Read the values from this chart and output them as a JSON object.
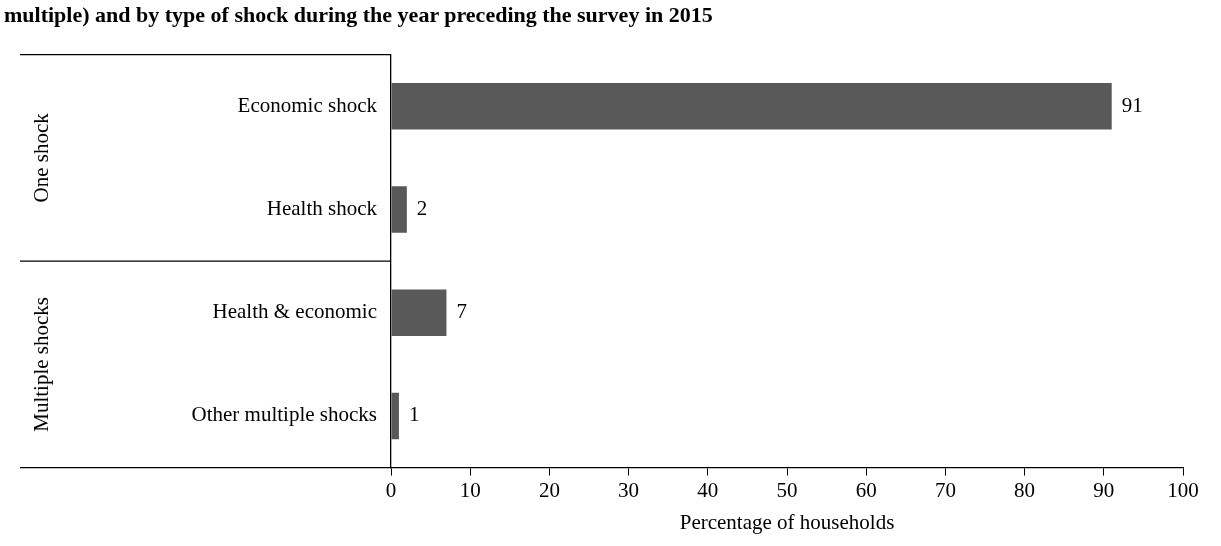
{
  "chart_data": {
    "type": "bar",
    "orientation": "horizontal",
    "title": "multiple) and by type of shock during the year preceding the survey in 2015",
    "categories": [
      "Economic shock",
      "Health shock",
      "Health & economic",
      "Other multiple shocks"
    ],
    "values": [
      91,
      2,
      7,
      1
    ],
    "color": "#595959",
    "data_labels": true,
    "xlim": [
      0,
      100
    ],
    "xticks": [
      0,
      10,
      20,
      30,
      40,
      50,
      60,
      70,
      80,
      90,
      100
    ],
    "xlabel": "Percentage of households",
    "grid": false,
    "legend": false,
    "annotations": [
      "One shock",
      "Multiple shocks"
    ]
  }
}
